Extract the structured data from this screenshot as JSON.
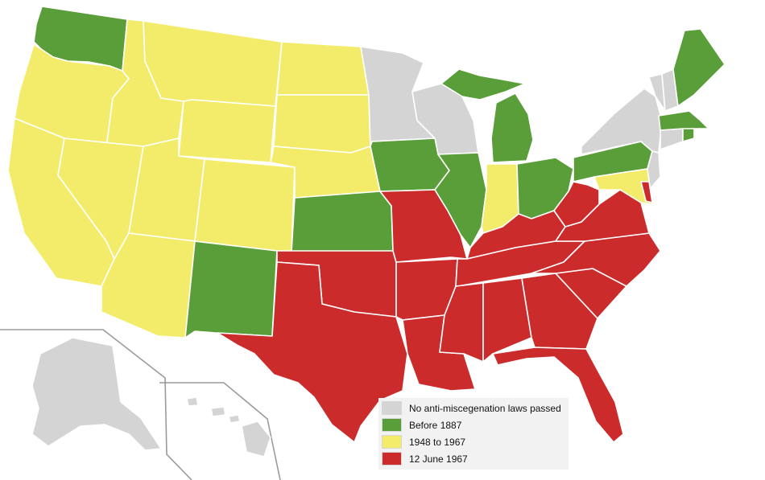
{
  "colors": {
    "none": "#d4d4d4",
    "before_1887": "#5a9e3a",
    "y1948_1967": "#f3ec6a",
    "june_1967": "#cc2b2b"
  },
  "legend": {
    "items": [
      {
        "label": "No anti-miscegenation laws passed",
        "color_key": "none"
      },
      {
        "label": "Before 1887",
        "color_key": "before_1887"
      },
      {
        "label": "1948 to 1967",
        "color_key": "y1948_1967"
      },
      {
        "label": "12 June 1967",
        "color_key": "june_1967"
      }
    ]
  },
  "regions": {
    "washington": "before_1887",
    "oregon": "y1948_1967",
    "california": "y1948_1967",
    "idaho": "y1948_1967",
    "nevada": "y1948_1967",
    "montana": "y1948_1967",
    "wyoming": "y1948_1967",
    "utah": "y1948_1967",
    "arizona": "y1948_1967",
    "colorado": "y1948_1967",
    "north_dakota": "y1948_1967",
    "south_dakota": "y1948_1967",
    "nebraska": "y1948_1967",
    "indiana": "y1948_1967",
    "maryland": "y1948_1967",
    "new_mexico": "before_1887",
    "kansas": "before_1887",
    "iowa": "before_1887",
    "illinois": "before_1887",
    "michigan": "before_1887",
    "ohio": "before_1887",
    "pennsylvania": "before_1887",
    "maine": "before_1887",
    "massachusetts": "before_1887",
    "rhode_island": "before_1887",
    "minnesota": "none",
    "wisconsin": "none",
    "new_york": "none",
    "vermont": "none",
    "new_hampshire": "none",
    "connecticut": "none",
    "new_jersey": "none",
    "alaska": "none",
    "hawaii": "none",
    "texas": "june_1967",
    "oklahoma": "june_1967",
    "missouri": "june_1967",
    "arkansas": "june_1967",
    "louisiana": "june_1967",
    "mississippi": "june_1967",
    "alabama": "june_1967",
    "georgia": "june_1967",
    "florida": "june_1967",
    "tennessee": "june_1967",
    "kentucky": "june_1967",
    "west_virginia": "june_1967",
    "virginia": "june_1967",
    "north_carolina": "june_1967",
    "south_carolina": "june_1967",
    "delaware": "june_1967"
  }
}
